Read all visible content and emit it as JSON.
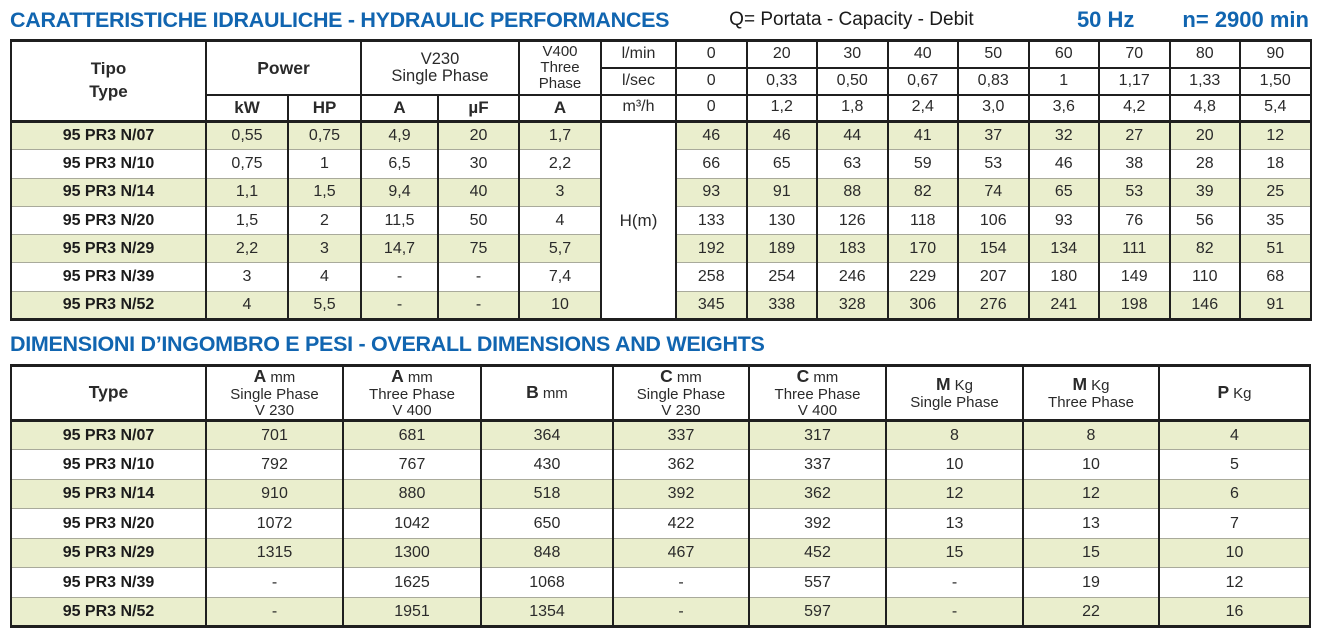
{
  "colors": {
    "accent_blue": "#1165b0",
    "row_green": "#eaeecd",
    "border_dark": "#1f1f1f",
    "row_separator": "#a9aa9b"
  },
  "header": {
    "title": "CARATTERISTICHE IDRAULICHE - HYDRAULIC PERFORMANCES",
    "q_legend": "Q= Portata - Capacity - Debit",
    "frequency": "50 Hz",
    "speed": "n= 2900 min"
  },
  "hydraulic_table": {
    "tipo_label_it": "Tipo",
    "tipo_label_en": "Type",
    "power_label": "Power",
    "kw_label": "kW",
    "hp_label": "HP",
    "v230_line1": "V230",
    "v230_line2": "Single Phase",
    "a_label": "A",
    "uf_label": "µF",
    "v400_line1": "V400",
    "v400_line2": "Three",
    "v400_line3": "Phase",
    "v400_a_label": "A",
    "units": [
      "l/min",
      "l/sec",
      "m³/h"
    ],
    "flow_lmin": [
      "0",
      "20",
      "30",
      "40",
      "50",
      "60",
      "70",
      "80",
      "90"
    ],
    "flow_lsec": [
      "0",
      "0,33",
      "0,50",
      "0,67",
      "0,83",
      "1",
      "1,17",
      "1,33",
      "1,50"
    ],
    "flow_m3h": [
      "0",
      "1,2",
      "1,8",
      "2,4",
      "3,0",
      "3,6",
      "4,2",
      "4,8",
      "5,4"
    ],
    "hm_label": "H(m)",
    "rows": [
      {
        "type": "95 PR3 N/07",
        "kw": "0,55",
        "hp": "0,75",
        "a": "4,9",
        "uf": "20",
        "a400": "1,7",
        "h": [
          "46",
          "46",
          "44",
          "41",
          "37",
          "32",
          "27",
          "20",
          "12"
        ]
      },
      {
        "type": "95 PR3 N/10",
        "kw": "0,75",
        "hp": "1",
        "a": "6,5",
        "uf": "30",
        "a400": "2,2",
        "h": [
          "66",
          "65",
          "63",
          "59",
          "53",
          "46",
          "38",
          "28",
          "18"
        ]
      },
      {
        "type": "95 PR3 N/14",
        "kw": "1,1",
        "hp": "1,5",
        "a": "9,4",
        "uf": "40",
        "a400": "3",
        "h": [
          "93",
          "91",
          "88",
          "82",
          "74",
          "65",
          "53",
          "39",
          "25"
        ]
      },
      {
        "type": "95 PR3 N/20",
        "kw": "1,5",
        "hp": "2",
        "a": "11,5",
        "uf": "50",
        "a400": "4",
        "h": [
          "133",
          "130",
          "126",
          "118",
          "106",
          "93",
          "76",
          "56",
          "35"
        ]
      },
      {
        "type": "95 PR3 N/29",
        "kw": "2,2",
        "hp": "3",
        "a": "14,7",
        "uf": "75",
        "a400": "5,7",
        "h": [
          "192",
          "189",
          "183",
          "170",
          "154",
          "134",
          "111",
          "82",
          "51"
        ]
      },
      {
        "type": "95 PR3 N/39",
        "kw": "3",
        "hp": "4",
        "a": "-",
        "uf": "-",
        "a400": "7,4",
        "h": [
          "258",
          "254",
          "246",
          "229",
          "207",
          "180",
          "149",
          "110",
          "68"
        ]
      },
      {
        "type": "95 PR3 N/52",
        "kw": "4",
        "hp": "5,5",
        "a": "-",
        "uf": "-",
        "a400": "10",
        "h": [
          "345",
          "338",
          "328",
          "306",
          "276",
          "241",
          "198",
          "146",
          "91"
        ]
      }
    ]
  },
  "dimensions": {
    "title": "DIMENSIONI D’INGOMBRO E PESI - OVERALL DIMENSIONS AND WEIGHTS",
    "headers": [
      {
        "letter": "Type"
      },
      {
        "letter": "A",
        "unit": "mm",
        "sub1": "Single Phase",
        "sub2": "V 230"
      },
      {
        "letter": "A",
        "unit": "mm",
        "sub1": "Three Phase",
        "sub2": "V 400"
      },
      {
        "letter": "B",
        "unit": "mm"
      },
      {
        "letter": "C",
        "unit": "mm",
        "sub1": "Single Phase",
        "sub2": "V 230"
      },
      {
        "letter": "C",
        "unit": "mm",
        "sub1": "Three Phase",
        "sub2": "V 400"
      },
      {
        "letter": "M",
        "unit": "Kg",
        "sub1": "Single Phase"
      },
      {
        "letter": "M",
        "unit": "Kg",
        "sub1": "Three Phase"
      },
      {
        "letter": "P",
        "unit": "Kg"
      }
    ],
    "rows": [
      {
        "type": "95 PR3 N/07",
        "values": [
          "701",
          "681",
          "364",
          "337",
          "317",
          "8",
          "8",
          "4"
        ]
      },
      {
        "type": "95 PR3 N/10",
        "values": [
          "792",
          "767",
          "430",
          "362",
          "337",
          "10",
          "10",
          "5"
        ]
      },
      {
        "type": "95 PR3 N/14",
        "values": [
          "910",
          "880",
          "518",
          "392",
          "362",
          "12",
          "12",
          "6"
        ]
      },
      {
        "type": "95 PR3 N/20",
        "values": [
          "1072",
          "1042",
          "650",
          "422",
          "392",
          "13",
          "13",
          "7"
        ]
      },
      {
        "type": "95 PR3 N/29",
        "values": [
          "1315",
          "1300",
          "848",
          "467",
          "452",
          "15",
          "15",
          "10"
        ]
      },
      {
        "type": "95 PR3 N/39",
        "values": [
          "-",
          "1625",
          "1068",
          "-",
          "557",
          "-",
          "19",
          "12"
        ]
      },
      {
        "type": "95 PR3 N/52",
        "values": [
          "-",
          "1951",
          "1354",
          "-",
          "597",
          "-",
          "22",
          "16"
        ]
      }
    ]
  }
}
